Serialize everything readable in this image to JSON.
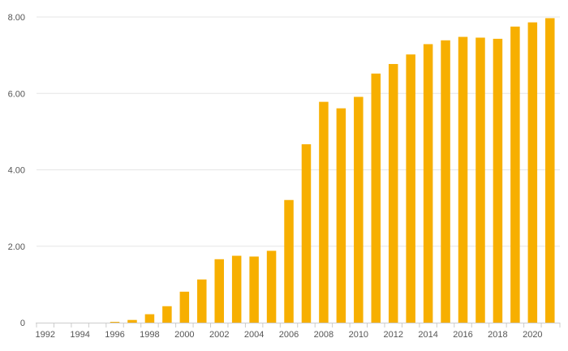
{
  "colors": {
    "bar": "#F7AF00",
    "grid": "#e6e6e6",
    "axis": "#cccccc",
    "text": "#555555"
  },
  "chart_data": {
    "type": "bar",
    "title": "",
    "xlabel": "",
    "ylabel": "",
    "ylim": [
      0,
      8
    ],
    "grid": true,
    "legend": "none",
    "y_ticks": [
      "0",
      "2.00",
      "4.00",
      "6.00",
      "8.00"
    ],
    "categories": [
      "1992",
      "1993",
      "1994",
      "1995",
      "1996",
      "1997",
      "1998",
      "1999",
      "2000",
      "2001",
      "2002",
      "2003",
      "2004",
      "2005",
      "2006",
      "2007",
      "2008",
      "2009",
      "2010",
      "2011",
      "2012",
      "2013",
      "2014",
      "2015",
      "2016",
      "2017",
      "2018",
      "2019",
      "2020",
      "2021"
    ],
    "x_tick_labels": [
      "1992",
      "",
      "1994",
      "",
      "1996",
      "",
      "1998",
      "",
      "2000",
      "",
      "2002",
      "",
      "2004",
      "",
      "2006",
      "",
      "2008",
      "",
      "2010",
      "",
      "2012",
      "",
      "2014",
      "",
      "2016",
      "",
      "2018",
      "",
      "2020",
      ""
    ],
    "values": [
      0,
      0,
      0,
      0,
      0.02,
      0.07,
      0.22,
      0.43,
      0.81,
      1.13,
      1.66,
      1.75,
      1.73,
      1.88,
      3.21,
      4.67,
      5.78,
      5.61,
      5.91,
      6.52,
      6.77,
      7.02,
      7.29,
      7.39,
      7.48,
      7.46,
      7.43,
      7.75,
      7.86,
      7.97
    ]
  }
}
